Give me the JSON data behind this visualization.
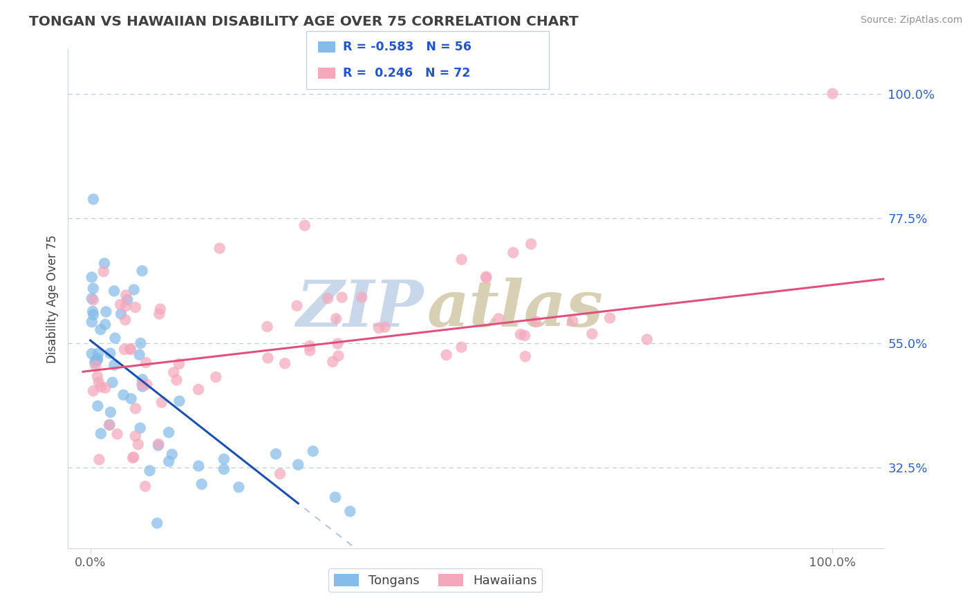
{
  "title": "TONGAN VS HAWAIIAN DISABILITY AGE OVER 75 CORRELATION CHART",
  "source": "Source: ZipAtlas.com",
  "ylabel": "Disability Age Over 75",
  "y_ticks": [
    32.5,
    55.0,
    77.5,
    100.0
  ],
  "y_tick_labels": [
    "32.5%",
    "55.0%",
    "77.5%",
    "100.0%"
  ],
  "xlim": [
    -3,
    107
  ],
  "ylim": [
    18,
    108
  ],
  "tongan_N": 56,
  "hawaiian_N": 72,
  "tongan_color": "#85bce8",
  "hawaiian_color": "#f4a8bc",
  "tongan_line_color": "#1a50b0",
  "hawaiian_line_color": "#e0507a",
  "background_color": "#ffffff",
  "grid_color": "#c0ccd8",
  "title_color": "#404040",
  "source_color": "#909090",
  "axis_tick_color": "#606060",
  "yaxis_color": "#3060c0",
  "legend_text_color": "#2255cc",
  "tongan_intercept": 55.5,
  "tongan_slope": -1.05,
  "hawaiian_intercept": 50.0,
  "hawaiian_slope": 0.155,
  "watermark_zip_color": "#c0d0e8",
  "watermark_atlas_color": "#d0c8a8"
}
